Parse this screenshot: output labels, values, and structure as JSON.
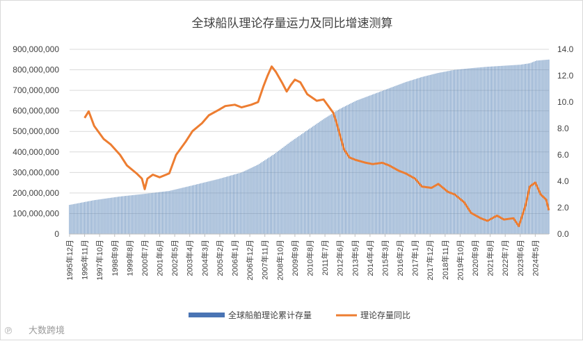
{
  "chart_data": {
    "type": "bar+line",
    "title": "全球船队理论存量运力及同比增速测算",
    "bar_series": {
      "name": "全球船舶理论累计存量",
      "color": "#5b86b8",
      "points": [
        [
          "1995-12",
          142000000
        ],
        [
          "1997-06",
          165000000
        ],
        [
          "1999-01",
          183000000
        ],
        [
          "2000-06",
          195000000
        ],
        [
          "2002-01",
          210000000
        ],
        [
          "2003-06",
          237000000
        ],
        [
          "2005-01",
          268000000
        ],
        [
          "2006-06",
          300000000
        ],
        [
          "2007-06",
          338000000
        ],
        [
          "2008-06",
          390000000
        ],
        [
          "2009-06",
          450000000
        ],
        [
          "2010-06",
          505000000
        ],
        [
          "2011-06",
          560000000
        ],
        [
          "2012-06",
          610000000
        ],
        [
          "2013-06",
          650000000
        ],
        [
          "2014-06",
          680000000
        ],
        [
          "2015-06",
          710000000
        ],
        [
          "2016-06",
          740000000
        ],
        [
          "2017-06",
          765000000
        ],
        [
          "2018-06",
          785000000
        ],
        [
          "2019-06",
          800000000
        ],
        [
          "2020-06",
          808000000
        ],
        [
          "2021-06",
          815000000
        ],
        [
          "2022-06",
          820000000
        ],
        [
          "2023-06",
          825000000
        ],
        [
          "2024-01",
          832000000
        ],
        [
          "2024-06",
          845000000
        ],
        [
          "2025-03",
          850000000
        ]
      ]
    },
    "line_series": {
      "name": "理论存量同比",
      "color": "#ed7d31",
      "points": [
        [
          "1996-11",
          8.8
        ],
        [
          "1997-02",
          9.3
        ],
        [
          "1997-06",
          8.2
        ],
        [
          "1998-01",
          7.2
        ],
        [
          "1998-06",
          6.8
        ],
        [
          "1999-01",
          6.0
        ],
        [
          "1999-06",
          5.2
        ],
        [
          "2000-01",
          4.6
        ],
        [
          "2000-05",
          4.2
        ],
        [
          "2000-07",
          3.4
        ],
        [
          "2000-09",
          4.2
        ],
        [
          "2001-01",
          4.5
        ],
        [
          "2001-06",
          4.3
        ],
        [
          "2002-01",
          4.6
        ],
        [
          "2002-06",
          6.0
        ],
        [
          "2003-01",
          7.0
        ],
        [
          "2003-06",
          7.8
        ],
        [
          "2004-01",
          8.4
        ],
        [
          "2004-06",
          9.0
        ],
        [
          "2005-01",
          9.4
        ],
        [
          "2005-06",
          9.7
        ],
        [
          "2006-01",
          9.8
        ],
        [
          "2006-06",
          9.6
        ],
        [
          "2007-01",
          9.8
        ],
        [
          "2007-06",
          10.0
        ],
        [
          "2007-10",
          11.2
        ],
        [
          "2008-01",
          12.0
        ],
        [
          "2008-04",
          12.7
        ],
        [
          "2008-07",
          12.3
        ],
        [
          "2008-12",
          11.4
        ],
        [
          "2009-03",
          10.8
        ],
        [
          "2009-06",
          11.3
        ],
        [
          "2009-09",
          11.7
        ],
        [
          "2010-01",
          11.5
        ],
        [
          "2010-06",
          10.6
        ],
        [
          "2011-01",
          10.1
        ],
        [
          "2011-06",
          10.2
        ],
        [
          "2012-01",
          9.2
        ],
        [
          "2012-03",
          8.6
        ],
        [
          "2012-06",
          7.5
        ],
        [
          "2012-09",
          6.4
        ],
        [
          "2013-01",
          5.8
        ],
        [
          "2013-06",
          5.6
        ],
        [
          "2014-01",
          5.4
        ],
        [
          "2014-06",
          5.3
        ],
        [
          "2015-01",
          5.4
        ],
        [
          "2015-06",
          5.2
        ],
        [
          "2016-01",
          4.8
        ],
        [
          "2016-06",
          4.6
        ],
        [
          "2017-01",
          4.2
        ],
        [
          "2017-06",
          3.6
        ],
        [
          "2018-01",
          3.5
        ],
        [
          "2018-06",
          3.8
        ],
        [
          "2019-01",
          3.2
        ],
        [
          "2019-06",
          3.0
        ],
        [
          "2020-01",
          2.4
        ],
        [
          "2020-06",
          1.6
        ],
        [
          "2021-01",
          1.2
        ],
        [
          "2021-06",
          1.0
        ],
        [
          "2022-01",
          1.4
        ],
        [
          "2022-06",
          1.1
        ],
        [
          "2023-01",
          1.2
        ],
        [
          "2023-05",
          0.6
        ],
        [
          "2023-10",
          2.2
        ],
        [
          "2024-01",
          3.6
        ],
        [
          "2024-05",
          3.9
        ],
        [
          "2024-09",
          3.0
        ],
        [
          "2025-01",
          2.6
        ],
        [
          "2025-03",
          1.8
        ]
      ]
    },
    "x_range": [
      "1995-12",
      "2025-03"
    ],
    "x_ticks": [
      "1995年12月",
      "1996年11月",
      "1997年10月",
      "1998年9月",
      "1999年8月",
      "2000年7月",
      "2001年6月",
      "2002年5月",
      "2003年4月",
      "2004年3月",
      "2005年2月",
      "2006年1月",
      "2006年12月",
      "2007年11月",
      "2008年10月",
      "2009年9月",
      "2010年8月",
      "2011年7月",
      "2012年6月",
      "2013年5月",
      "2014年4月",
      "2015年3月",
      "2016年2月",
      "2017年1月",
      "2017年12月",
      "2018年11月",
      "2019年10月",
      "2020年9月",
      "2021年8月",
      "2022年7月",
      "2023年6月",
      "2024年5月"
    ],
    "y_left": {
      "min": 0,
      "max": 900000000,
      "ticks": [
        "0",
        "100,000,000",
        "200,000,000",
        "300,000,000",
        "400,000,000",
        "500,000,000",
        "600,000,000",
        "700,000,000",
        "800,000,000",
        "900,000,000"
      ]
    },
    "y_right": {
      "min": 0,
      "max": 14,
      "ticks": [
        "0.0",
        "2.0",
        "4.0",
        "6.0",
        "8.0",
        "10.0",
        "12.0",
        "14.0"
      ]
    },
    "grid": true,
    "legend_position": "bottom"
  },
  "legend": {
    "bar_label": "全球船舶理论累计存量",
    "line_label": "理论存量同比"
  },
  "watermark": "大数跨境"
}
